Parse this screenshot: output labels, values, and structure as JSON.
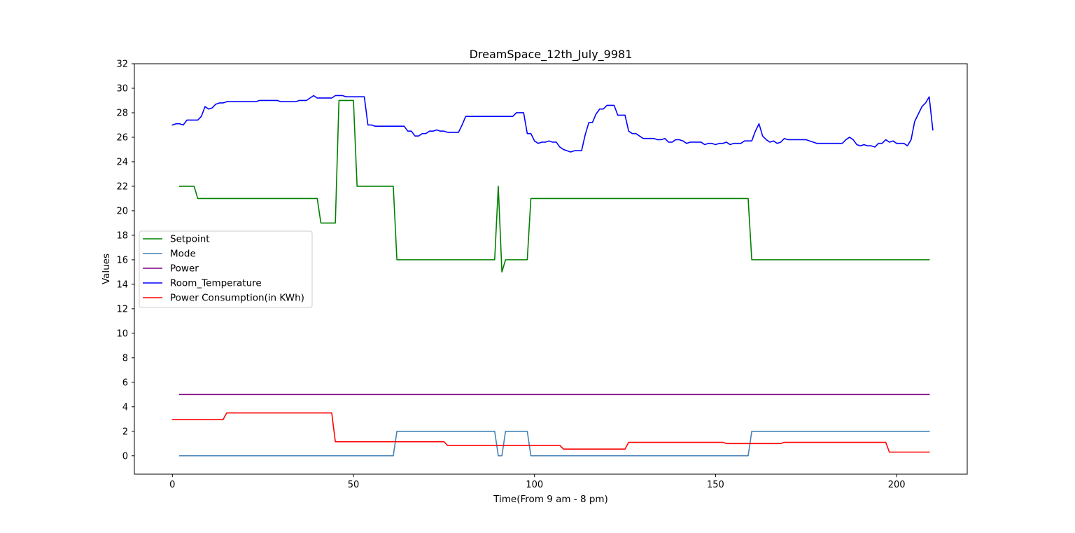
{
  "chart_data": {
    "type": "line",
    "title": "DreamSpace_12th_July_9981",
    "xlabel": "Time(From 9 am - 8 pm)",
    "ylabel": "Values",
    "xlim": [
      -10.5,
      219.5
    ],
    "ylim": [
      -1.5,
      32
    ],
    "xticks": [
      0,
      50,
      100,
      150,
      200
    ],
    "yticks": [
      0,
      2,
      4,
      6,
      8,
      10,
      12,
      14,
      16,
      18,
      20,
      22,
      24,
      26,
      28,
      30,
      32
    ],
    "grid": false,
    "legend_position": "center-left",
    "series": [
      {
        "name": "Setpoint",
        "color": "#008000",
        "points": [
          [
            2,
            22
          ],
          [
            6,
            22
          ],
          [
            7,
            21
          ],
          [
            40,
            21
          ],
          [
            41,
            19
          ],
          [
            45,
            19
          ],
          [
            46,
            29
          ],
          [
            50,
            29
          ],
          [
            51,
            22
          ],
          [
            61,
            22
          ],
          [
            62,
            16
          ],
          [
            89,
            16
          ],
          [
            90,
            22
          ],
          [
            91,
            15
          ],
          [
            92,
            16
          ],
          [
            98,
            16
          ],
          [
            99,
            21
          ],
          [
            159,
            21
          ],
          [
            160,
            16
          ],
          [
            209,
            16
          ]
        ]
      },
      {
        "name": "Mode",
        "color": "#4682b4",
        "points": [
          [
            2,
            0
          ],
          [
            61,
            0
          ],
          [
            62,
            2
          ],
          [
            89,
            2
          ],
          [
            90,
            0
          ],
          [
            91,
            0
          ],
          [
            92,
            2
          ],
          [
            98,
            2
          ],
          [
            99,
            0
          ],
          [
            159,
            0
          ],
          [
            160,
            2
          ],
          [
            209,
            2
          ]
        ]
      },
      {
        "name": "Power",
        "color": "#800080",
        "points": [
          [
            2,
            5
          ],
          [
            209,
            5
          ]
        ]
      },
      {
        "name": "Room_Temperature",
        "color": "#0000ff",
        "points": [
          [
            0,
            27
          ],
          [
            1,
            27.1
          ],
          [
            2,
            27.1
          ],
          [
            3,
            27
          ],
          [
            4,
            27.4
          ],
          [
            7,
            27.4
          ],
          [
            8,
            27.7
          ],
          [
            9,
            28.5
          ],
          [
            10,
            28.3
          ],
          [
            11,
            28.4
          ],
          [
            12,
            28.7
          ],
          [
            13,
            28.8
          ],
          [
            14,
            28.8
          ],
          [
            15,
            28.9
          ],
          [
            23,
            28.9
          ],
          [
            24,
            29
          ],
          [
            29,
            29
          ],
          [
            30,
            28.9
          ],
          [
            34,
            28.9
          ],
          [
            35,
            29
          ],
          [
            37,
            29
          ],
          [
            38,
            29.2
          ],
          [
            39,
            29.4
          ],
          [
            40,
            29.2
          ],
          [
            44,
            29.2
          ],
          [
            45,
            29.4
          ],
          [
            47,
            29.4
          ],
          [
            48,
            29.3
          ],
          [
            53,
            29.3
          ],
          [
            54,
            27
          ],
          [
            55,
            27
          ],
          [
            56,
            26.9
          ],
          [
            64,
            26.9
          ],
          [
            65,
            26.5
          ],
          [
            66,
            26.5
          ],
          [
            67,
            26.1
          ],
          [
            68,
            26.1
          ],
          [
            69,
            26.3
          ],
          [
            70,
            26.3
          ],
          [
            71,
            26.5
          ],
          [
            72,
            26.5
          ],
          [
            73,
            26.6
          ],
          [
            74,
            26.5
          ],
          [
            75,
            26.5
          ],
          [
            76,
            26.4
          ],
          [
            79,
            26.4
          ],
          [
            80,
            27
          ],
          [
            81,
            27.7
          ],
          [
            94,
            27.7
          ],
          [
            95,
            28
          ],
          [
            97,
            28
          ],
          [
            98,
            26.3
          ],
          [
            99,
            26.3
          ],
          [
            100,
            25.7
          ],
          [
            101,
            25.5
          ],
          [
            102,
            25.6
          ],
          [
            103,
            25.6
          ],
          [
            104,
            25.7
          ],
          [
            105,
            25.6
          ],
          [
            106,
            25.6
          ],
          [
            107,
            25.2
          ],
          [
            108,
            25
          ],
          [
            109,
            24.9
          ],
          [
            110,
            24.8
          ],
          [
            111,
            24.9
          ],
          [
            113,
            24.9
          ],
          [
            114,
            26.2
          ],
          [
            115,
            27.2
          ],
          [
            116,
            27.2
          ],
          [
            117,
            27.9
          ],
          [
            118,
            28.3
          ],
          [
            119,
            28.3
          ],
          [
            120,
            28.6
          ],
          [
            122,
            28.6
          ],
          [
            123,
            27.8
          ],
          [
            125,
            27.8
          ],
          [
            126,
            26.5
          ],
          [
            127,
            26.3
          ],
          [
            128,
            26.3
          ],
          [
            129,
            26.1
          ],
          [
            130,
            25.9
          ],
          [
            133,
            25.9
          ],
          [
            134,
            25.8
          ],
          [
            135,
            25.8
          ],
          [
            136,
            25.9
          ],
          [
            137,
            25.6
          ],
          [
            138,
            25.6
          ],
          [
            139,
            25.8
          ],
          [
            140,
            25.8
          ],
          [
            141,
            25.7
          ],
          [
            142,
            25.5
          ],
          [
            143,
            25.6
          ],
          [
            146,
            25.6
          ],
          [
            147,
            25.4
          ],
          [
            148,
            25.5
          ],
          [
            149,
            25.5
          ],
          [
            150,
            25.4
          ],
          [
            151,
            25.5
          ],
          [
            152,
            25.5
          ],
          [
            153,
            25.6
          ],
          [
            154,
            25.4
          ],
          [
            155,
            25.5
          ],
          [
            157,
            25.5
          ],
          [
            158,
            25.7
          ],
          [
            160,
            25.7
          ],
          [
            161,
            26.5
          ],
          [
            162,
            27.1
          ],
          [
            163,
            26.1
          ],
          [
            164,
            25.8
          ],
          [
            165,
            25.6
          ],
          [
            166,
            25.7
          ],
          [
            167,
            25.5
          ],
          [
            168,
            25.6
          ],
          [
            169,
            25.9
          ],
          [
            170,
            25.8
          ],
          [
            175,
            25.8
          ],
          [
            176,
            25.7
          ],
          [
            177,
            25.6
          ],
          [
            178,
            25.5
          ],
          [
            185,
            25.5
          ],
          [
            186,
            25.8
          ],
          [
            187,
            26
          ],
          [
            188,
            25.8
          ],
          [
            189,
            25.4
          ],
          [
            190,
            25.3
          ],
          [
            191,
            25.4
          ],
          [
            192,
            25.3
          ],
          [
            193,
            25.3
          ],
          [
            194,
            25.2
          ],
          [
            195,
            25.5
          ],
          [
            196,
            25.5
          ],
          [
            197,
            25.8
          ],
          [
            198,
            25.6
          ],
          [
            199,
            25.7
          ],
          [
            200,
            25.5
          ],
          [
            202,
            25.5
          ],
          [
            203,
            25.3
          ],
          [
            204,
            25.8
          ],
          [
            205,
            27.3
          ],
          [
            206,
            27.9
          ],
          [
            207,
            28.5
          ],
          [
            208,
            28.8
          ],
          [
            209,
            29.3
          ],
          [
            210,
            26.6
          ]
        ]
      },
      {
        "name": "Power Consumption(in KWh)",
        "color": "#ff0000",
        "points": [
          [
            0,
            2.95
          ],
          [
            14,
            2.95
          ],
          [
            15,
            3.5
          ],
          [
            44,
            3.5
          ],
          [
            45,
            1.15
          ],
          [
            75,
            1.15
          ],
          [
            76,
            0.85
          ],
          [
            107,
            0.85
          ],
          [
            108,
            0.55
          ],
          [
            125,
            0.55
          ],
          [
            126,
            1.1
          ],
          [
            152,
            1.1
          ],
          [
            153,
            1
          ],
          [
            168,
            1
          ],
          [
            169,
            1.1
          ],
          [
            197,
            1.1
          ],
          [
            198,
            0.3
          ],
          [
            209,
            0.3
          ]
        ]
      }
    ]
  }
}
